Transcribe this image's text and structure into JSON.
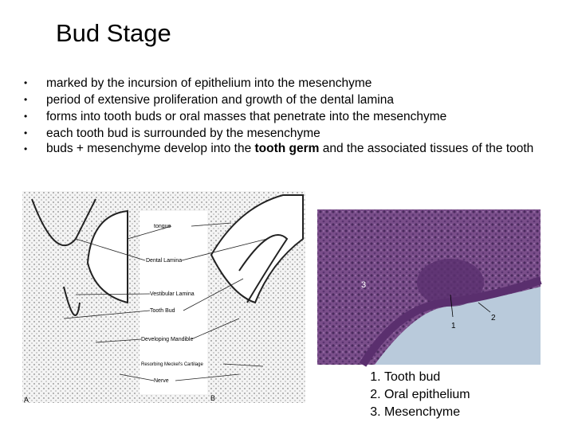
{
  "title": "Bud Stage",
  "bullets": [
    "marked by the incursion of epithelium into the mesenchyme",
    "period of extensive proliferation and growth of the dental lamina",
    "forms into tooth buds or oral masses that penetrate into the mesenchyme",
    "each tooth bud is surrounded by the mesenchyme",
    {
      "before": "buds + mesenchyme develop into the",
      "bold": "tooth germ",
      "after": "and the associated tissues of the tooth"
    }
  ],
  "diagram": {
    "labels": [
      "tongue",
      "Dental Lamina",
      "Vestibular Lamina",
      "Tooth Bud",
      "Developing Mandible",
      "Resorbing Meckel's Cartilage",
      "Nerve"
    ],
    "panels": [
      "A",
      "B"
    ]
  },
  "micrograph": {
    "labels": [
      "3",
      "1",
      "2"
    ]
  },
  "legend": [
    "Tooth bud",
    "Oral epithelium",
    "Mesenchyme"
  ]
}
